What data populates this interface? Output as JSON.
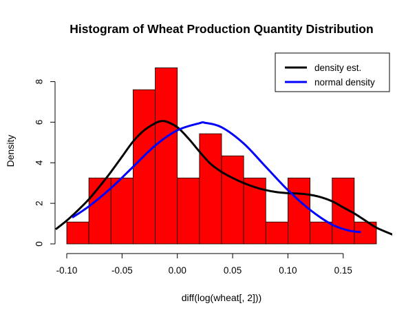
{
  "chart_data": {
    "type": "histogram",
    "title": "Histogram of Wheat Production Quantity Distribution",
    "xlabel": "diff(log(wheat[, 2]))",
    "ylabel": "Density",
    "xlim": [
      -0.1,
      0.18
    ],
    "ylim": [
      0,
      9
    ],
    "x_ticks": [
      -0.1,
      -0.05,
      0.0,
      0.05,
      0.1,
      0.15
    ],
    "x_tick_labels": [
      "-0.10",
      "-0.05",
      "0.00",
      "0.05",
      "0.10",
      "0.15"
    ],
    "y_ticks": [
      0,
      2,
      4,
      6,
      8
    ],
    "y_tick_labels": [
      "0",
      "2",
      "4",
      "6",
      "8"
    ],
    "grid": false,
    "legend_position": "top-right",
    "bar_color": "#ff0000",
    "bins": [
      {
        "x0": -0.1,
        "x1": -0.08,
        "density": 1.08
      },
      {
        "x0": -0.08,
        "x1": -0.06,
        "density": 3.25
      },
      {
        "x0": -0.06,
        "x1": -0.04,
        "density": 3.25
      },
      {
        "x0": -0.04,
        "x1": -0.02,
        "density": 7.6
      },
      {
        "x0": -0.02,
        "x1": 0.0,
        "density": 8.68
      },
      {
        "x0": 0.0,
        "x1": 0.02,
        "density": 3.25
      },
      {
        "x0": 0.02,
        "x1": 0.04,
        "density": 5.43
      },
      {
        "x0": 0.04,
        "x1": 0.06,
        "density": 4.34
      },
      {
        "x0": 0.06,
        "x1": 0.08,
        "density": 3.25
      },
      {
        "x0": 0.08,
        "x1": 0.1,
        "density": 1.08
      },
      {
        "x0": 0.1,
        "x1": 0.12,
        "density": 3.25
      },
      {
        "x0": 0.12,
        "x1": 0.14,
        "density": 1.08
      },
      {
        "x0": 0.14,
        "x1": 0.16,
        "density": 3.25
      },
      {
        "x0": 0.16,
        "x1": 0.18,
        "density": 1.08
      }
    ],
    "series": [
      {
        "name": "density est.",
        "color": "#000000",
        "x": [
          -0.11,
          -0.1,
          -0.09,
          -0.08,
          -0.07,
          -0.06,
          -0.05,
          -0.04,
          -0.03,
          -0.02,
          -0.015,
          -0.01,
          0.0,
          0.01,
          0.02,
          0.03,
          0.04,
          0.05,
          0.06,
          0.07,
          0.08,
          0.09,
          0.1,
          0.11,
          0.12,
          0.13,
          0.14,
          0.15,
          0.16,
          0.17,
          0.18,
          0.195
        ],
        "y": [
          0.72,
          1.15,
          1.65,
          2.2,
          2.85,
          3.55,
          4.3,
          5.05,
          5.6,
          5.95,
          6.05,
          6.03,
          5.75,
          5.2,
          4.55,
          3.95,
          3.55,
          3.25,
          3.0,
          2.8,
          2.65,
          2.55,
          2.5,
          2.48,
          2.42,
          2.3,
          2.1,
          1.8,
          1.5,
          1.15,
          0.8,
          0.45
        ]
      },
      {
        "name": "normal density",
        "color": "#0000ff",
        "x": [
          -0.095,
          -0.08,
          -0.06,
          -0.04,
          -0.02,
          0.0,
          0.02,
          0.025,
          0.04,
          0.06,
          0.08,
          0.1,
          0.12,
          0.14,
          0.155,
          0.166
        ],
        "y": [
          1.3,
          1.85,
          2.75,
          3.8,
          4.85,
          5.6,
          5.95,
          5.97,
          5.75,
          4.95,
          3.8,
          2.65,
          1.68,
          0.95,
          0.66,
          0.58
        ]
      }
    ]
  }
}
